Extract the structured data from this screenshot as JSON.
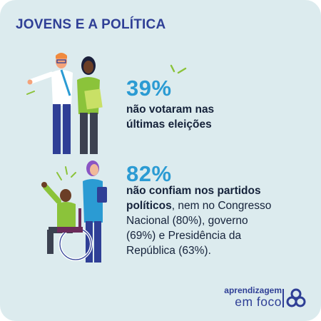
{
  "header": {
    "title": "JOVENS E A POLÍTICA"
  },
  "stats": [
    {
      "percent": "39%",
      "bold_text_line1": "não votaram nas",
      "bold_text_line2": "últimas eleições",
      "icon": "voting-youth-illustration"
    },
    {
      "percent": "82%",
      "bold_text_line1": "não confiam nos partidos",
      "bold_text_line2_bold": "políticos",
      "text_line2_rest": ", nem no Congresso",
      "text_line3": "Nacional (80%), governo",
      "text_line4": "(69%) e Presidência da",
      "text_line5": "República (63%).",
      "icon": "protest-youth-illustration"
    }
  ],
  "brand": {
    "top": "aprendizagem",
    "bottom": "em foco",
    "logo": "aprendizagem-em-foco-logo"
  },
  "colors": {
    "background": "#dcebee",
    "title": "#2f3f96",
    "accent": "#2b9bd3",
    "text": "#15223a",
    "highlight": "#8bc33a"
  }
}
